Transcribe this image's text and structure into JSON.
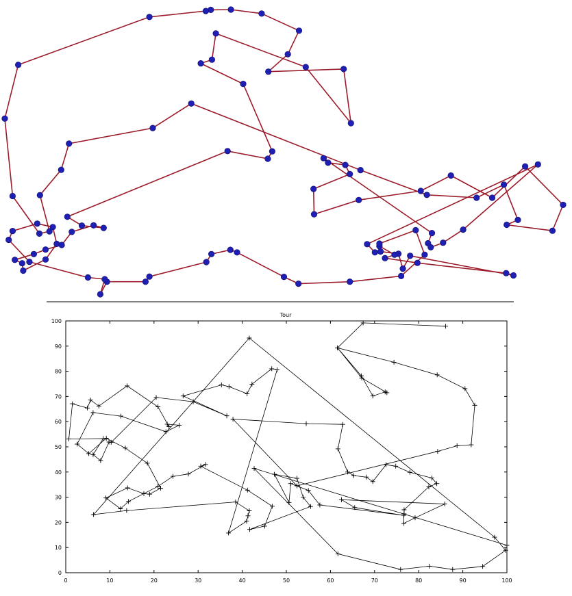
{
  "colors": {
    "tour_line": "#9b1b2a",
    "node_fill": "#1f1fb4",
    "node_stroke": "#10106e",
    "plot_line": "#000000"
  },
  "chart_data": [
    {
      "type": "line",
      "title": "",
      "xlabel": "",
      "ylabel": "",
      "xlim": [
        0,
        100
      ],
      "ylim": [
        0,
        100
      ],
      "axes_visible": false,
      "grid": false,
      "legend": "none",
      "markers": "filled-circle",
      "x": [
        39.9,
        47.1,
        47.9,
        42.7,
        35.1,
        37.1,
        37.8,
        53.9,
        62.0,
        60.7,
        47.2,
        50.7,
        52.7,
        46.0,
        40.5,
        36.9,
        36.0,
        25.9,
        2.4,
        0.0,
        1.4,
        6.2,
        8.0,
        6.3,
        10.1,
        11.5,
        26.5,
        33.4,
        63.7,
        75.6,
        84.5,
        89.4,
        91.9,
        89.9,
        98.1,
        100.0,
        93.2,
        87.3,
        79.9,
        74.5,
        63.4,
        55.4,
        55.3,
        61.8,
        61.0,
        57.9,
        57.1,
        76.5,
        75.8,
        76.3,
        78.5,
        82.1,
        95.5,
        64.9,
        66.3,
        67.3,
        70.5,
        71.3,
        72.6,
        91.1,
        89.8,
        73.9,
        68.1,
        69.8,
        67.1,
        67.1,
        73.6,
        75.2,
        71.0,
        61.8,
        52.6,
        50.0,
        41.6,
        40.4,
        37.0,
        36.1,
        25.9,
        25.2,
        18.3,
        17.1,
        17.9,
        14.9,
        4.4,
        0.7,
        1.4,
        5.8,
        8.6,
        9.3,
        7.3,
        3.3,
        3.1,
        1.8,
        5.2,
        7.3,
        10.2,
        12.0,
        15.9,
        17.7,
        13.8,
        11.2
      ],
      "y": [
        50.3,
        47.6,
        50.2,
        73.9,
        81.1,
        82.4,
        91.6,
        79.8,
        60.1,
        79.1,
        78.2,
        84.3,
        92.6,
        98.6,
        100.0,
        99.9,
        99.5,
        97.4,
        80.6,
        61.7,
        34.5,
        21.3,
        22.1,
        34.8,
        43.7,
        52.9,
        58.4,
        67.0,
        43.6,
        34.9,
        33.9,
        38.5,
        26.1,
        24.4,
        22.3,
        31.4,
        44.9,
        33.9,
        41.7,
        36.3,
        33.1,
        28.1,
        37.0,
        42.2,
        45.4,
        46.2,
        47.8,
        21.5,
        17.9,
        16.5,
        18.1,
        22.7,
        45.6,
        17.6,
        14.7,
        15.0,
        14.2,
        9.0,
        13.5,
        6.6,
        7.4,
        11.0,
        12.7,
        13.9,
        16.9,
        17.8,
        22.5,
        13.9,
        6.4,
        4.4,
        3.7,
        6.1,
        14.7,
        15.6,
        14.1,
        11.3,
        6.2,
        4.4,
        4.4,
        0.0,
        5.3,
        5.9,
        11.4,
        19.1,
        22.2,
        24.8,
        23.6,
        17.7,
        12.2,
        8.3,
        10.9,
        12.1,
        14.1,
        15.7,
        17.3,
        21.9,
        24.2,
        23.3,
        24.1,
        27.2
      ]
    },
    {
      "type": "line",
      "title": "Tour",
      "xlabel": "",
      "ylabel": "",
      "xlim": [
        0,
        100
      ],
      "ylim": [
        0,
        100
      ],
      "x_ticks": [
        0,
        10,
        20,
        30,
        40,
        50,
        60,
        70,
        80,
        90,
        100
      ],
      "y_ticks": [
        0,
        10,
        20,
        30,
        40,
        50,
        60,
        70,
        80,
        90,
        100
      ],
      "grid": false,
      "legend": "none",
      "markers": "plus",
      "x": [
        86.1,
        67.4,
        61.6,
        67.0,
        69.6,
        72.4,
        72.8,
        67.1,
        61.6,
        74.4,
        84.2,
        90.5,
        92.7,
        91.9,
        88.7,
        84.3,
        52.4,
        37.9,
        54.5,
        62.8,
        61.7,
        63.9,
        65.3,
        68.1,
        69.6,
        72.6,
        74.8,
        78.0,
        83.0,
        84.1,
        82.3,
        76.7,
        76.7,
        76.6,
        79.2,
        85.9,
        62.5,
        65.5,
        76.6,
        57.6,
        55.0,
        51.0,
        50.6,
        47.3,
        52.4,
        53.8,
        55.5,
        41.7,
        45.1,
        46.8,
        41.2,
        30.6,
        31.7,
        27.8,
        24.3,
        20.9,
        14.2,
        12.4,
        9.1,
        14.0,
        17.7,
        19.0,
        21.5,
        18.5,
        13.5,
        9.2,
        5.2,
        2.6,
        6.2,
        12.5,
        22.7,
        25.7,
        23.0,
        23.4,
        20.9,
        13.9,
        7.5,
        5.6,
        4.9,
        1.5,
        0.7,
        8.5,
        6.2,
        7.9,
        9.8,
        10.3,
        20.5,
        28.9,
        36.5,
        26.6,
        35.3,
        37.0,
        41.1,
        42.2,
        46.7,
        47.9,
        36.9,
        41.0,
        41.3,
        41.6,
        38.5,
        13.8,
        6.3,
        41.6,
        97.2,
        99.7,
        94.5,
        87.7,
        82.4,
        75.9,
        61.7,
        42.7,
        100.0
      ],
      "y": [
        97.9,
        99.2,
        89.3,
        78.2,
        70.2,
        71.8,
        71.5,
        77.3,
        89.3,
        83.6,
        78.6,
        73.1,
        66.5,
        50.8,
        50.4,
        48.2,
        34.5,
        61.0,
        59.2,
        58.9,
        49.2,
        40.0,
        38.6,
        38.0,
        36.2,
        42.9,
        42.3,
        39.9,
        37.6,
        35.4,
        34.1,
        25.0,
        23.4,
        19.6,
        21.8,
        27.3,
        29.0,
        25.9,
        22.8,
        26.9,
        32.7,
        35.4,
        27.9,
        39.1,
        37.5,
        30.0,
        26.3,
        17.2,
        18.5,
        26.4,
        32.8,
        42.3,
        43.0,
        39.2,
        38.3,
        34.3,
        28.3,
        25.4,
        29.7,
        33.7,
        31.4,
        31.2,
        33.6,
        43.5,
        49.5,
        53.4,
        47.3,
        51.1,
        63.6,
        62.2,
        56.0,
        58.6,
        59.0,
        58.0,
        65.9,
        74.2,
        66.2,
        68.6,
        65.4,
        67.1,
        53.1,
        53.3,
        46.9,
        44.5,
        51.9,
        51.8,
        69.6,
        67.9,
        62.3,
        70.2,
        74.6,
        73.9,
        71.1,
        74.9,
        81.0,
        80.6,
        15.8,
        20.5,
        22.6,
        24.6,
        28.1,
        24.7,
        23.1,
        93.2,
        14.1,
        8.9,
        2.5,
        1.3,
        2.6,
        1.3,
        7.5,
        41.4,
        10.9
      ]
    }
  ]
}
